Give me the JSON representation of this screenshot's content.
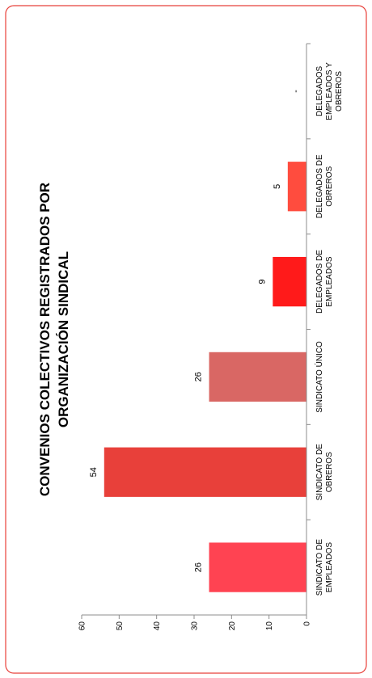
{
  "chart_data": {
    "type": "bar",
    "orientation": "vertical bars, figure rotated 90 degrees counter-clockwise",
    "title_lines": [
      "CONVENIOS COLECTIVOS REGISTRADOS POR",
      "ORGANIZACIÓN SINDICAL"
    ],
    "categories": [
      [
        "SINDICATO DE",
        "EMPLEADOS"
      ],
      [
        "SINDICATO DE",
        "OBREROS"
      ],
      [
        "SINDICATO ÚNICO"
      ],
      [
        "DELEGADOS DE",
        "EMPLEADOS"
      ],
      [
        "DELEGADOS DE",
        "OBREROS"
      ],
      [
        "DELEGADOS",
        "EMPLEADOS Y",
        "OBREROS"
      ]
    ],
    "values": [
      26,
      54,
      26,
      9,
      5,
      0
    ],
    "data_labels": [
      "26",
      "54",
      "26",
      "9",
      "5",
      "-"
    ],
    "bar_colors": [
      "#FF4352",
      "#E8403A",
      "#D96764",
      "#FF1A1A",
      "#FF4C3E",
      "#FF4C3E"
    ],
    "ylim": [
      0,
      60
    ],
    "yticks": [
      "0",
      "10",
      "20",
      "30",
      "40",
      "50",
      "60"
    ],
    "border_color": "#E8403A",
    "grid": false,
    "legend": "none"
  }
}
